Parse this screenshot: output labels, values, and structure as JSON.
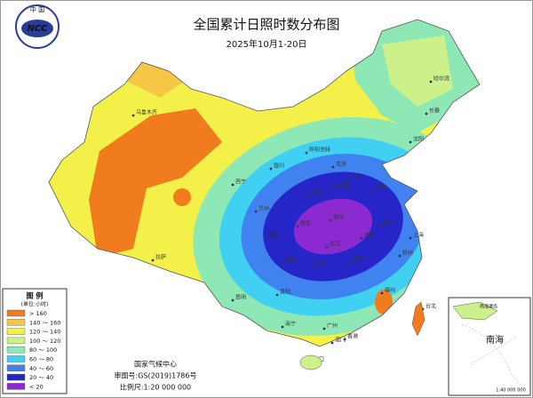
{
  "logo": {
    "top": "中 国",
    "mark": "NCC"
  },
  "header": {
    "title": "全国累计日照时数分布图",
    "subtitle": "2025年10月1-20日"
  },
  "legend": {
    "title": "图 例",
    "unit": "(单位:小时)",
    "items": [
      {
        "label": "> 160",
        "color": "#f07c1e"
      },
      {
        "label": "140 ～ 160",
        "color": "#f6c646"
      },
      {
        "label": "120 ～ 140",
        "color": "#f4f04a"
      },
      {
        "label": "100 ～ 120",
        "color": "#ccf08a"
      },
      {
        "label": "80 ～ 100",
        "color": "#8ee8b6"
      },
      {
        "label": "60 ～ 80",
        "color": "#3fd0f2"
      },
      {
        "label": "40 ～ 60",
        "color": "#3f82f0"
      },
      {
        "label": "20 ～ 40",
        "color": "#2626c8"
      },
      {
        "label": "< 20",
        "color": "#8a2ad0"
      }
    ]
  },
  "footer": {
    "org": "国家气候中心",
    "approval": "审图号:GS(2019)1786号",
    "scale": "比例尺:1:20 000 000"
  },
  "inset": {
    "islands": "南海诸岛",
    "sea": "南海",
    "scale": "1:40 000 000"
  },
  "cities": [
    "乌鲁木齐",
    "拉萨",
    "西宁",
    "兰州",
    "银川",
    "呼和浩特",
    "北京",
    "天津",
    "石家庄",
    "太原",
    "济南",
    "郑州",
    "西安",
    "成都",
    "重庆",
    "贵阳",
    "昆明",
    "南宁",
    "广州",
    "海口",
    "长沙",
    "武汉",
    "南昌",
    "福州",
    "杭州",
    "合肥",
    "南京",
    "上海",
    "沈阳",
    "长春",
    "哈尔滨",
    "台北",
    "香港",
    "澳门"
  ]
}
